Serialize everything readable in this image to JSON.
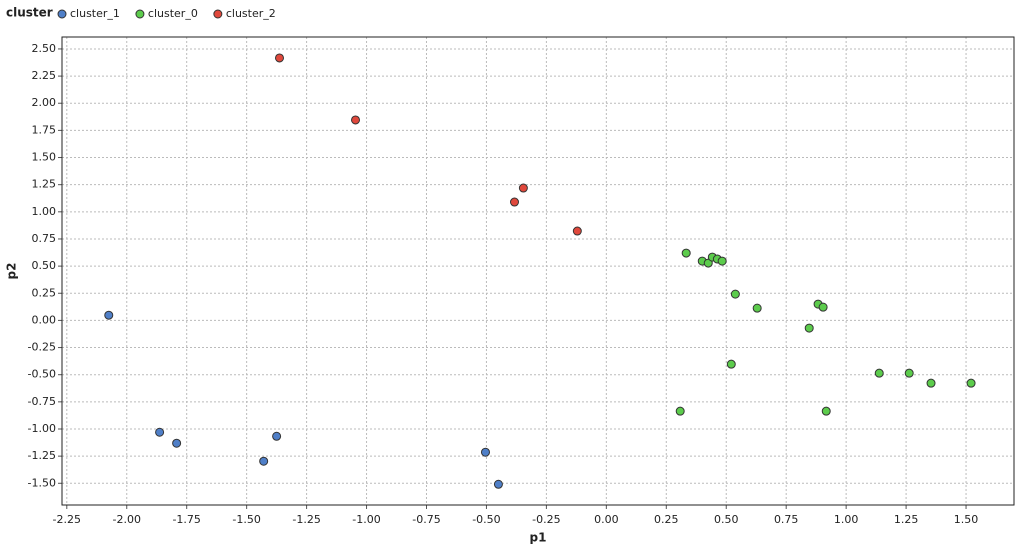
{
  "chart_data": {
    "type": "scatter",
    "legend_title": "cluster",
    "x_label": "p1",
    "y_label": "p2",
    "grid": true,
    "legend": "top-left",
    "xlim": [
      -2.27,
      1.7
    ],
    "ylim": [
      -1.7,
      2.61
    ],
    "xticks": [
      {
        "value": -2.25,
        "label": "-2.25"
      },
      {
        "value": -2,
        "label": "-2.00"
      },
      {
        "value": -1.75,
        "label": "-1.75"
      },
      {
        "value": -1.5,
        "label": "-1.50"
      },
      {
        "value": -1.25,
        "label": "-1.25"
      },
      {
        "value": -1,
        "label": "-1.00"
      },
      {
        "value": -0.75,
        "label": "-0.75"
      },
      {
        "value": -0.5,
        "label": "-0.50"
      },
      {
        "value": -0.25,
        "label": "-0.25"
      },
      {
        "value": 0,
        "label": "0.00"
      },
      {
        "value": 0.25,
        "label": "0.25"
      },
      {
        "value": 0.5,
        "label": "0.50"
      },
      {
        "value": 0.75,
        "label": "0.75"
      },
      {
        "value": 1,
        "label": "1.00"
      },
      {
        "value": 1.25,
        "label": "1.25"
      },
      {
        "value": 1.5,
        "label": "1.50"
      }
    ],
    "yticks": [
      {
        "value": 2.5,
        "label": "2.50"
      },
      {
        "value": 2.25,
        "label": "2.25"
      },
      {
        "value": 2,
        "label": "2.00"
      },
      {
        "value": 1.75,
        "label": "1.75"
      },
      {
        "value": 1.5,
        "label": "1.50"
      },
      {
        "value": 1.25,
        "label": "1.25"
      },
      {
        "value": 1,
        "label": "1.00"
      },
      {
        "value": 0.75,
        "label": "0.75"
      },
      {
        "value": 0.5,
        "label": "0.50"
      },
      {
        "value": 0.25,
        "label": "0.25"
      },
      {
        "value": 0,
        "label": "0.00"
      },
      {
        "value": -0.25,
        "label": "-0.25"
      },
      {
        "value": -0.5,
        "label": "-0.50"
      },
      {
        "value": -0.75,
        "label": "-0.75"
      },
      {
        "value": -1,
        "label": "-1.00"
      },
      {
        "value": -1.25,
        "label": "-1.25"
      },
      {
        "value": -1.5,
        "label": "-1.50"
      }
    ],
    "series": [
      {
        "name": "cluster_1",
        "color": "#4f7fc8",
        "x": [
          -2.075,
          -1.863,
          -1.792,
          -1.375,
          -1.429,
          -0.504,
          -0.45
        ],
        "values": [
          0.048,
          -1.03,
          -1.131,
          -1.067,
          -1.297,
          -1.214,
          -1.509
        ]
      },
      {
        "name": "cluster_0",
        "color": "#5ccc4c",
        "x": [
          0.333,
          0.308,
          0.4,
          0.425,
          0.442,
          0.463,
          0.483,
          0.538,
          0.521,
          0.629,
          0.846,
          0.883,
          0.904,
          0.917,
          1.138,
          1.263,
          1.354,
          1.521
        ],
        "values": [
          0.62,
          -0.836,
          0.546,
          0.528,
          0.583,
          0.565,
          0.546,
          0.242,
          -0.403,
          0.113,
          -0.071,
          0.15,
          0.122,
          -0.836,
          -0.486,
          -0.486,
          -0.578,
          -0.578
        ]
      },
      {
        "name": "cluster_2",
        "color": "#e0483c",
        "x": [
          -1.363,
          -1.046,
          -0.346,
          -0.383,
          -0.121
        ],
        "values": [
          2.417,
          1.846,
          1.219,
          1.09,
          0.823
        ]
      }
    ]
  }
}
